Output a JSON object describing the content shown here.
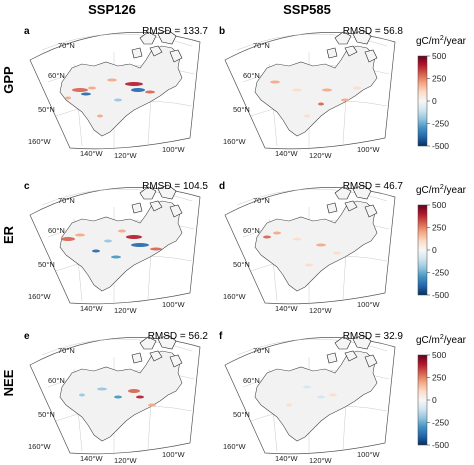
{
  "columns": [
    {
      "key": "ssp126",
      "title": "SSP126"
    },
    {
      "key": "ssp585",
      "title": "SSP585"
    }
  ],
  "rows": [
    {
      "title": "GPP",
      "panels": [
        {
          "label": "a",
          "rmsd": "RMSD = 133.7"
        },
        {
          "label": "b",
          "rmsd": "RMSD = 56.8"
        }
      ]
    },
    {
      "title": "ER",
      "panels": [
        {
          "label": "c",
          "rmsd": "RMSD = 104.5"
        },
        {
          "label": "d",
          "rmsd": "RMSD = 46.7"
        }
      ]
    },
    {
      "title": "NEE",
      "panels": [
        {
          "label": "e",
          "rmsd": "RMSD = 56.2"
        },
        {
          "label": "f",
          "rmsd": "RMSD = 32.9"
        }
      ]
    }
  ],
  "lat_labels": [
    "70°N",
    "60°N",
    "50°N"
  ],
  "lon_labels": [
    "160°W",
    "140°W",
    "120°W",
    "100°W"
  ],
  "colorbar": {
    "unit_prefix": "gC/m",
    "unit_sup": "2",
    "unit_suffix": "/year",
    "ticks": [
      "500",
      "250",
      "0",
      "-250",
      "-500"
    ],
    "colors": [
      "#67001f",
      "#b2182b",
      "#d6604d",
      "#f4a582",
      "#fddbc7",
      "#f7f7f7",
      "#d1e5f0",
      "#92c5de",
      "#4393c3",
      "#2166ac",
      "#053061"
    ]
  }
}
